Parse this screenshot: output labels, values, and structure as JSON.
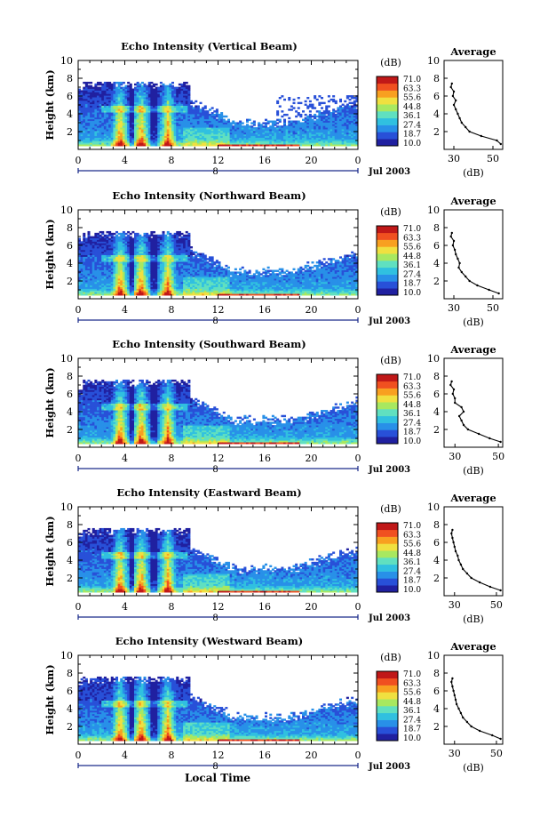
{
  "figure": {
    "xlabel": "Local Time",
    "colorbar_unit": "(dB)",
    "colorbar_ticks": [
      "71.0",
      "63.3",
      "55.6",
      "44.8",
      "36.1",
      "27.4",
      "18.7",
      "10.0"
    ],
    "colors": [
      "#2020a0",
      "#2850d8",
      "#2890e8",
      "#30c0e0",
      "#60e0c0",
      "#a8e860",
      "#f0e040",
      "#f8a020",
      "#f05020",
      "#c01818"
    ]
  },
  "chart_data": [
    {
      "type": "heatmap",
      "title": "Echo Intensity (Vertical Beam)",
      "ylabel": "Height (km)",
      "xlim": [
        0,
        24
      ],
      "ylim": [
        0,
        10
      ],
      "x_ticks": [
        "0",
        "4",
        "8",
        "12",
        "16",
        "20",
        "0"
      ],
      "y_ticks": [
        "2",
        "4",
        "6",
        "8",
        "10"
      ],
      "date_label": "Jul 2003",
      "day_label": "8",
      "colorbar_unit": "(dB)",
      "colorbar_range": [
        10.0,
        71.0
      ],
      "profile": {
        "title": "Average",
        "xlabel": "(dB)",
        "x_ticks": [
          "30",
          "50"
        ],
        "y_ticks": [
          "2",
          "4",
          "6",
          "8",
          "10"
        ],
        "xlim": [
          25,
          55
        ],
        "height_km": [
          0.6,
          1.0,
          1.5,
          2.0,
          2.5,
          3.0,
          3.5,
          4.0,
          4.5,
          5.0,
          5.5,
          6.0,
          6.5,
          7.0,
          7.4
        ],
        "intensity_db": [
          54,
          52,
          44,
          38,
          36,
          34,
          33,
          32,
          31,
          30,
          31,
          29.5,
          30,
          28.5,
          29
        ]
      }
    },
    {
      "type": "heatmap",
      "title": "Echo Intensity (Northward Beam)",
      "ylabel": "Height (km)",
      "xlim": [
        0,
        24
      ],
      "ylim": [
        0,
        10
      ],
      "x_ticks": [
        "0",
        "4",
        "8",
        "12",
        "16",
        "20",
        "0"
      ],
      "y_ticks": [
        "2",
        "4",
        "6",
        "8",
        "10"
      ],
      "date_label": "Jul 2003",
      "day_label": "8",
      "colorbar_unit": "(dB)",
      "colorbar_range": [
        10.0,
        71.0
      ],
      "profile": {
        "title": "Average",
        "xlabel": "(dB)",
        "x_ticks": [
          "30",
          "50"
        ],
        "y_ticks": [
          "2",
          "4",
          "6",
          "8",
          "10"
        ],
        "xlim": [
          25,
          55
        ],
        "height_km": [
          0.6,
          1.0,
          1.5,
          2.0,
          2.5,
          3.0,
          3.5,
          4.0,
          4.5,
          5.0,
          5.5,
          6.0,
          6.5,
          7.0,
          7.4
        ],
        "intensity_db": [
          53,
          48,
          42,
          38,
          36,
          34,
          32.5,
          33,
          32,
          31,
          30.5,
          29.5,
          30,
          28.5,
          29
        ]
      }
    },
    {
      "type": "heatmap",
      "title": "Echo Intensity (Southward Beam)",
      "ylabel": "Height (km)",
      "xlim": [
        0,
        24
      ],
      "ylim": [
        0,
        10
      ],
      "x_ticks": [
        "0",
        "4",
        "8",
        "12",
        "16",
        "20",
        "0"
      ],
      "y_ticks": [
        "2",
        "4",
        "6",
        "8",
        "10"
      ],
      "date_label": "Jul 2003",
      "day_label": "8",
      "colorbar_unit": "(dB)",
      "colorbar_range": [
        10.0,
        71.0
      ],
      "profile": {
        "title": "Average",
        "xlabel": "(dB)",
        "x_ticks": [
          "30",
          "50"
        ],
        "y_ticks": [
          "2",
          "4",
          "6",
          "8",
          "10"
        ],
        "xlim": [
          25,
          52
        ],
        "height_km": [
          0.6,
          1.0,
          1.5,
          2.0,
          2.5,
          3.0,
          3.5,
          4.0,
          4.5,
          5.0,
          5.5,
          6.0,
          6.5,
          7.0,
          7.4
        ],
        "intensity_db": [
          51,
          46,
          41,
          36,
          34,
          33,
          32,
          34,
          33,
          30,
          30,
          29,
          29.5,
          28,
          28.5
        ]
      }
    },
    {
      "type": "heatmap",
      "title": "Echo Intensity (Eastward Beam)",
      "ylabel": "Height (km)",
      "xlim": [
        0,
        24
      ],
      "ylim": [
        0,
        10
      ],
      "x_ticks": [
        "0",
        "4",
        "8",
        "12",
        "16",
        "20",
        "0"
      ],
      "y_ticks": [
        "2",
        "4",
        "6",
        "8",
        "10"
      ],
      "date_label": "Jul 2003",
      "day_label": "8",
      "colorbar_unit": "(dB)",
      "colorbar_range": [
        10.0,
        71.0
      ],
      "profile": {
        "title": "Average",
        "xlabel": "(dB)",
        "x_ticks": [
          "30",
          "50"
        ],
        "y_ticks": [
          "2",
          "4",
          "6",
          "8",
          "10"
        ],
        "xlim": [
          25,
          53
        ],
        "height_km": [
          0.6,
          1.0,
          1.5,
          2.0,
          2.5,
          3.0,
          3.5,
          4.0,
          4.5,
          5.0,
          5.5,
          6.0,
          6.5,
          7.0,
          7.4
        ],
        "intensity_db": [
          52,
          47,
          42,
          38,
          36,
          34,
          33,
          32,
          31.5,
          30.5,
          30,
          29.5,
          29,
          28.5,
          29
        ]
      }
    },
    {
      "type": "heatmap",
      "title": "Echo Intensity (Westward Beam)",
      "ylabel": "Height (km)",
      "xlim": [
        0,
        24
      ],
      "ylim": [
        0,
        10
      ],
      "x_ticks": [
        "0",
        "4",
        "8",
        "12",
        "16",
        "20",
        "0"
      ],
      "y_ticks": [
        "2",
        "4",
        "6",
        "8",
        "10"
      ],
      "date_label": "Jul 2003",
      "day_label": "8",
      "colorbar_unit": "(dB)",
      "colorbar_range": [
        10.0,
        71.0
      ],
      "profile": {
        "title": "Average",
        "xlabel": "(dB)",
        "x_ticks": [
          "30",
          "50"
        ],
        "y_ticks": [
          "2",
          "4",
          "6",
          "8",
          "10"
        ],
        "xlim": [
          25,
          53
        ],
        "height_km": [
          0.6,
          1.0,
          1.5,
          2.0,
          2.5,
          3.0,
          3.5,
          4.0,
          4.5,
          5.0,
          5.5,
          6.0,
          6.5,
          7.0,
          7.4
        ],
        "intensity_db": [
          52,
          48,
          42,
          38,
          36,
          34,
          33,
          32,
          31,
          30.5,
          30,
          29.5,
          29,
          28.5,
          29
        ]
      }
    }
  ]
}
